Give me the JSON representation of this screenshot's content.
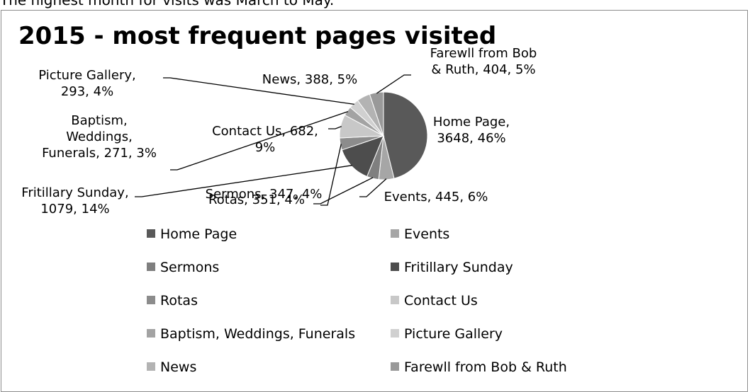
{
  "intro_text": "The highest month for visits was March to May.",
  "chart_data": {
    "type": "pie",
    "title": "2015 - most frequent  pages visited",
    "legend_position": "bottom",
    "slices": [
      {
        "name": "Home Page",
        "value": 3648,
        "percent": "46%",
        "color": "#595959",
        "label_lines": [
          "Home Page,",
          "3648, 46%"
        ]
      },
      {
        "name": "Events",
        "value": 445,
        "percent": "6%",
        "color": "#a6a6a6",
        "label_lines": [
          "Events, 445, 6%"
        ]
      },
      {
        "name": "Sermons",
        "value": 347,
        "percent": "4%",
        "color": "#7f7f7f",
        "label_lines": [
          "Sermons, 347, 4%"
        ]
      },
      {
        "name": "Fritillary Sunday",
        "value": 1079,
        "percent": "14%",
        "color": "#4d4d4d",
        "label_lines": [
          "Fritillary Sunday,",
          "1079, 14%"
        ]
      },
      {
        "name": "Rotas",
        "value": 351,
        "percent": "4%",
        "color": "#8c8c8c",
        "label_lines": [
          "Rotas, 351, 4%"
        ]
      },
      {
        "name": "Contact Us",
        "value": 682,
        "percent": "9%",
        "color": "#c8c8c8",
        "label_lines": [
          "Contact Us, 682,",
          "9%"
        ]
      },
      {
        "name": "Baptism, Weddings, Funerals",
        "value": 271,
        "percent": "3%",
        "color": "#a3a3a3",
        "label_lines": [
          "Baptism,",
          "Weddings,",
          "Funerals, 271, 3%"
        ]
      },
      {
        "name": "Picture Gallery",
        "value": 293,
        "percent": "4%",
        "color": "#d0d0d0",
        "label_lines": [
          "Picture Gallery,",
          "293, 4%"
        ]
      },
      {
        "name": "News",
        "value": 388,
        "percent": "5%",
        "color": "#b3b3b3",
        "label_lines": [
          "News, 388, 5%"
        ]
      },
      {
        "name": "Farewll from Bob & Ruth",
        "value": 404,
        "percent": "5%",
        "color": "#999999",
        "label_lines": [
          "Farewll from Bob",
          "& Ruth, 404, 5%"
        ]
      }
    ]
  }
}
